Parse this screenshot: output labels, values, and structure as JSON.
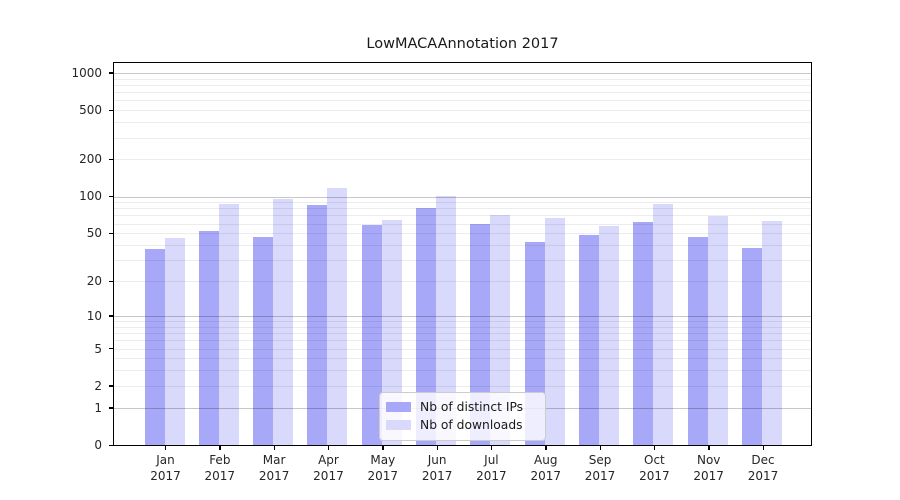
{
  "title": "LowMACAAnnotation 2017",
  "colors": {
    "bar_distinct_ips": "#a8a8f9",
    "bar_downloads": "#d9d9fb",
    "grid_major": "rgba(0,0,0,0.22)",
    "grid_minor": "rgba(0,0,0,0.075)",
    "spine": "#000000",
    "background": "#ffffff",
    "legend_border": "#cccccc"
  },
  "legend": {
    "entries": [
      {
        "label": "Nb of distinct IPs"
      },
      {
        "label": "Nb of downloads"
      }
    ]
  },
  "chart_data": {
    "type": "bar",
    "title": "LowMACAAnnotation 2017",
    "categories": [
      "Jan 2017",
      "Feb 2017",
      "Mar 2017",
      "Apr 2017",
      "May 2017",
      "Jun 2017",
      "Jul 2017",
      "Aug 2017",
      "Sep 2017",
      "Oct 2017",
      "Nov 2017",
      "Dec 2017"
    ],
    "months": [
      "Jan",
      "Feb",
      "Mar",
      "Apr",
      "May",
      "Jun",
      "Jul",
      "Aug",
      "Sep",
      "Oct",
      "Nov",
      "Dec"
    ],
    "year_label": "2017",
    "series": [
      {
        "name": "Nb of distinct IPs",
        "color": "#a8a8f9",
        "values": [
          37,
          52,
          47,
          85,
          58,
          80,
          60,
          42,
          48,
          62,
          47,
          38
        ]
      },
      {
        "name": "Nb of downloads",
        "color": "#d9d9fb",
        "values": [
          46,
          86,
          96,
          118,
          64,
          100,
          70,
          67,
          57,
          86,
          69,
          63
        ]
      }
    ],
    "yscale": "log1p",
    "yticks": [
      0,
      1,
      2,
      5,
      10,
      20,
      50,
      100,
      200,
      500,
      1000
    ],
    "ytick_labels": [
      "0",
      "1",
      "2",
      "5",
      "10",
      "20",
      "50",
      "100",
      "200",
      "500",
      "1000"
    ],
    "grid_major_at": [
      1,
      10,
      100,
      1000
    ],
    "ylim": [
      0,
      1200
    ],
    "xlabel": "",
    "ylabel": "",
    "legend_position": "lower center-right inside plot",
    "grid": true
  }
}
